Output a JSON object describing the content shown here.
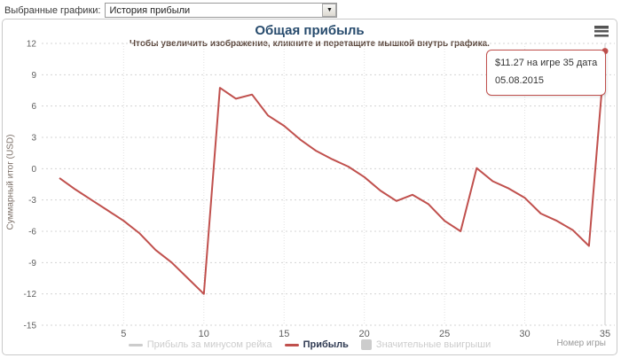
{
  "toolbar": {
    "label": "Выбранные графики:",
    "select_value": "История прибыли"
  },
  "chart": {
    "title": "Общая прибыль",
    "subtitle": "Чтобы увеличить изображение, кликните и перетащите мышкой внутрь графика.",
    "y_axis_title": "Суммарный итог (USD)",
    "x_axis_title": "Номер игры",
    "tooltip": {
      "line1": "$11.27 на игре 35 дата",
      "line2": "05.08.2015"
    },
    "legend": [
      {
        "label": "Прибыль за минусом рейка",
        "marker": "line",
        "color": "#cccccc",
        "text_color": "#cccccc",
        "bold": false,
        "disabled": true
      },
      {
        "label": "Прибыль",
        "marker": "line",
        "color": "#c0504d",
        "text_color": "#2f3a52",
        "bold": true,
        "disabled": false
      },
      {
        "label": "Значительные выигрыши",
        "marker": "square",
        "color": "#cccccc",
        "text_color": "#cccccc",
        "bold": false,
        "disabled": true
      }
    ],
    "colors": {
      "title": "#274b6d",
      "series": "#c0504d",
      "grid": "#d4d4d4",
      "axis_label": "#606060",
      "crosshair": "#cccccc"
    }
  },
  "chart_data": {
    "type": "line",
    "title": "Общая прибыль",
    "xlabel": "Номер игры",
    "ylabel": "Суммарный итог (USD)",
    "x": [
      1,
      2,
      3,
      4,
      5,
      6,
      7,
      8,
      9,
      10,
      11,
      12,
      13,
      14,
      15,
      16,
      17,
      18,
      19,
      20,
      21,
      22,
      23,
      24,
      25,
      26,
      27,
      28,
      29,
      30,
      31,
      32,
      33,
      34,
      35
    ],
    "series": [
      {
        "name": "Прибыль",
        "color": "#c0504d",
        "values": [
          -0.9,
          -2.0,
          -3.0,
          -4.0,
          -5.0,
          -6.2,
          -7.8,
          -9.0,
          -10.5,
          -12.0,
          7.75,
          6.7,
          7.1,
          5.1,
          4.1,
          2.8,
          1.7,
          0.9,
          0.2,
          -0.8,
          -2.1,
          -3.1,
          -2.5,
          -3.4,
          -5.0,
          -6.0,
          0.05,
          -1.2,
          -1.9,
          -2.8,
          -4.3,
          -5.0,
          -5.9,
          -7.4,
          11.27
        ]
      }
    ],
    "hidden_series": [
      "Прибыль за минусом рейка",
      "Значительные выигрыши"
    ],
    "xlim": [
      1,
      35
    ],
    "ylim": [
      -15,
      12
    ],
    "xticks": [
      5,
      10,
      15,
      20,
      25,
      30,
      35
    ],
    "yticks": [
      12,
      9,
      6,
      3,
      0,
      -3,
      -6,
      -9,
      -12,
      -15
    ],
    "grid": "dotted",
    "legend_position": "bottom",
    "highlight_point": {
      "x": 35,
      "y": 11.27
    }
  }
}
